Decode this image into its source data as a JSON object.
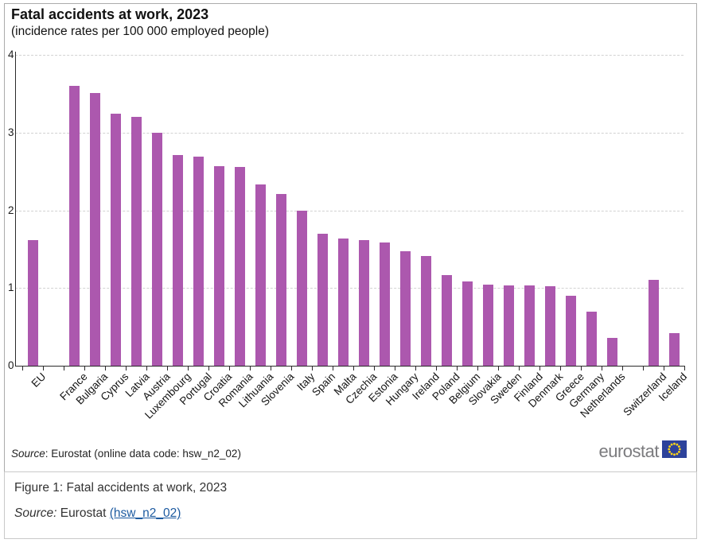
{
  "chart_data": {
    "type": "bar",
    "title": "Fatal accidents at work, 2023",
    "subtitle": "(incidence rates per 100 000 employed people)",
    "categories": [
      "EU",
      "France",
      "Bulgaria",
      "Cyprus",
      "Latvia",
      "Austria",
      "Luxembourg",
      "Portugal",
      "Croatia",
      "Romania",
      "Lithuania",
      "Slovenia",
      "Italy",
      "Spain",
      "Malta",
      "Czechia",
      "Estonia",
      "Hungary",
      "Ireland",
      "Poland",
      "Belgium",
      "Slovakia",
      "Sweden",
      "Finland",
      "Denmark",
      "Greece",
      "Germany",
      "Netherlands",
      "Switzerland",
      "Iceland"
    ],
    "values": [
      1.62,
      3.6,
      3.51,
      3.24,
      3.2,
      3.0,
      2.71,
      2.69,
      2.57,
      2.56,
      2.33,
      2.21,
      2.0,
      1.7,
      1.64,
      1.62,
      1.59,
      1.47,
      1.41,
      1.17,
      1.08,
      1.04,
      1.03,
      1.03,
      1.02,
      0.9,
      0.7,
      0.36,
      1.11,
      0.42
    ],
    "gap_after": [
      "EU",
      "Netherlands"
    ],
    "ylim": [
      0,
      4
    ],
    "yticks": [
      0,
      1,
      2,
      3,
      4
    ],
    "xlabel": "",
    "ylabel": "",
    "legend": "none",
    "grid": "horizontal-dashed"
  },
  "colors": {
    "bar": "#AC58AE",
    "link": "#1C5AA0",
    "logo_text": "#7B7B7E",
    "flag_blue": "#2D429B",
    "flag_stars": "#FFD617"
  },
  "source_note": {
    "prefix": "Source",
    "rest": ": Eurostat (online data code: hsw_n2_02)"
  },
  "logo": {
    "text": "eurostat"
  },
  "caption": {
    "figure_label": "Figure 1: Fatal accidents at work, 2023",
    "source_prefix": "Source:",
    "source_mid": " Eurostat ",
    "source_link": "(hsw_n2_02)"
  }
}
